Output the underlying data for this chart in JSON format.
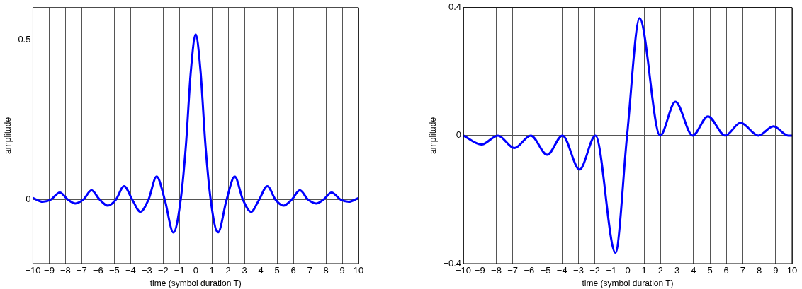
{
  "chart_data": [
    {
      "type": "line",
      "xlabel": "time (symbol duration T)",
      "ylabel": "amplitude",
      "x": [
        -10,
        -9.4,
        -8.9,
        -8.35,
        -7.85,
        -7.4,
        -6.9,
        -6.4,
        -5.9,
        -5.4,
        -4.9,
        -4.4,
        -3.9,
        -3.4,
        -2.9,
        -2.4,
        -1.9,
        -1.37,
        -0.92,
        -0.6,
        -0.3,
        0,
        0.3,
        0.6,
        0.92,
        1.37,
        1.9,
        2.4,
        2.9,
        3.4,
        3.9,
        4.4,
        4.9,
        5.4,
        5.9,
        6.4,
        6.9,
        7.4,
        7.85,
        8.35,
        8.9,
        9.4,
        10
      ],
      "series": [
        {
          "color": "#0000ff",
          "values": [
            0.005,
            -0.007,
            0,
            0.022,
            0,
            -0.012,
            0,
            0.029,
            0,
            -0.019,
            0,
            0.042,
            0,
            -0.038,
            0,
            0.072,
            0,
            -0.103,
            0,
            0.17,
            0.4,
            0.516,
            0.4,
            0.17,
            0,
            -0.103,
            0,
            0.072,
            0,
            -0.038,
            0,
            0.042,
            0,
            -0.019,
            0,
            0.029,
            0,
            -0.012,
            0,
            0.022,
            0,
            -0.007,
            0.005
          ]
        }
      ],
      "xlim": [
        -10,
        10
      ],
      "xticks": [
        -10,
        -9,
        -8,
        -7,
        -6,
        -5,
        -4,
        -3,
        -2,
        -1,
        0,
        1,
        2,
        3,
        4,
        5,
        6,
        7,
        8,
        9,
        10
      ],
      "ylim": [
        -0.2,
        0.6
      ],
      "yticks": [
        0,
        0.5
      ],
      "grid": true,
      "marker": "none"
    },
    {
      "type": "line",
      "xlabel": "time (symbol duration T)",
      "ylabel": "amplitude",
      "x": [
        -10,
        -8.9,
        -7.9,
        -6.9,
        -5.9,
        -4.9,
        -3.97,
        -2.93,
        -1.96,
        -0.75,
        -0.04,
        0.72,
        1.97,
        2.9,
        3.95,
        4.88,
        5.93,
        6.87,
        7.94,
        8.87,
        9.76,
        10
      ],
      "series": [
        {
          "color": "#0000ff",
          "values": [
            0,
            -0.028,
            0,
            -0.039,
            0,
            -0.06,
            0,
            -0.106,
            0,
            -0.366,
            0,
            0.367,
            0,
            0.106,
            0,
            0.06,
            0,
            0.04,
            0,
            0.029,
            0,
            0
          ]
        }
      ],
      "xlim": [
        -10,
        10
      ],
      "xticks": [
        -10,
        -9,
        -8,
        -7,
        -6,
        -5,
        -4,
        -3,
        -2,
        -1,
        0,
        1,
        2,
        3,
        4,
        5,
        6,
        7,
        8,
        9,
        10
      ],
      "ylim": [
        -0.4,
        0.4
      ],
      "yticks": [
        -0.4,
        0,
        0.4
      ],
      "grid": true,
      "marker": "none"
    }
  ]
}
